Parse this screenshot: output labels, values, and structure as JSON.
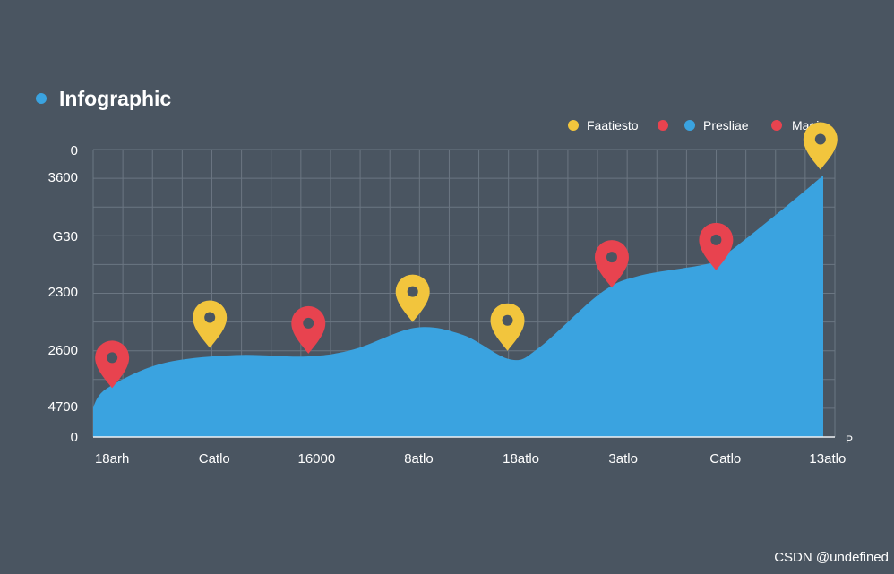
{
  "chart_data": {
    "type": "area",
    "title": "Infographic",
    "y_tick_labels": [
      "0",
      "3600",
      "G30",
      "2300",
      "2600",
      "4700",
      "0"
    ],
    "x_tick_labels": [
      "18arh",
      "Catlo",
      "16000",
      "8atlo",
      "18atlo",
      "3atlo",
      "Catlo",
      "13atlo"
    ],
    "x_axis_end_label": "P",
    "legend": [
      {
        "name": "Faatiesto",
        "color": "#f2c53d"
      },
      {
        "name": "",
        "color": "#e8434f"
      },
      {
        "name": "Presliae",
        "color": "#3aa3e0"
      },
      {
        "name": "Magin",
        "color": "#e8434f"
      }
    ],
    "area_color": "#3aa3e0",
    "ylim": [
      0,
      100
    ],
    "area_series": [
      {
        "x": 0,
        "y": 10.5
      },
      {
        "x": 0.15,
        "y": 17
      },
      {
        "x": 0.72,
        "y": 25.5
      },
      {
        "x": 1.5,
        "y": 28.5
      },
      {
        "x": 2.25,
        "y": 28
      },
      {
        "x": 2.75,
        "y": 30.5
      },
      {
        "x": 3.4,
        "y": 38
      },
      {
        "x": 3.9,
        "y": 35.5
      },
      {
        "x": 4.4,
        "y": 27
      },
      {
        "x": 4.7,
        "y": 31
      },
      {
        "x": 5.35,
        "y": 50
      },
      {
        "x": 5.75,
        "y": 56
      },
      {
        "x": 6.45,
        "y": 60
      },
      {
        "x": 6.65,
        "y": 63
      },
      {
        "x": 7.3,
        "y": 80
      },
      {
        "x": 7.7,
        "y": 91
      }
    ],
    "markers": [
      {
        "x": 0.2,
        "y": 17,
        "color": "#e8434f"
      },
      {
        "x": 1.23,
        "y": 31,
        "color": "#f2c53d"
      },
      {
        "x": 2.27,
        "y": 29,
        "color": "#e8434f"
      },
      {
        "x": 3.37,
        "y": 40,
        "color": "#f2c53d"
      },
      {
        "x": 4.37,
        "y": 30,
        "color": "#f2c53d"
      },
      {
        "x": 5.47,
        "y": 52,
        "color": "#e8434f"
      },
      {
        "x": 6.57,
        "y": 58,
        "color": "#e8434f"
      },
      {
        "x": 7.67,
        "y": 93,
        "color": "#f2c53d"
      }
    ],
    "grid": true
  },
  "watermark": "CSDN @undefined",
  "title_dot_color": "#3aa3e0"
}
